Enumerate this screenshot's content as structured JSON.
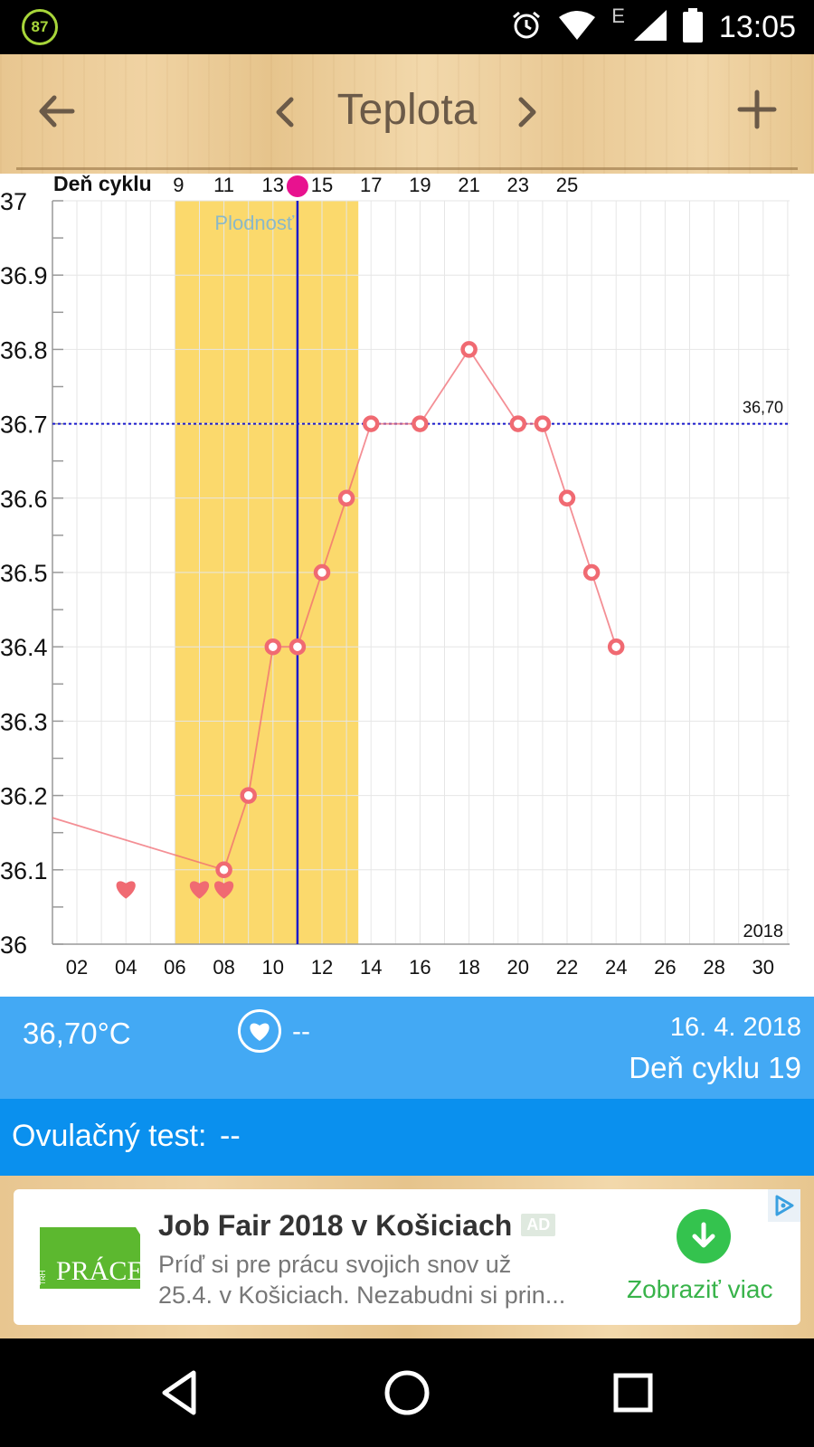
{
  "status_bar": {
    "battery_badge": "87",
    "network_letter": "E",
    "time": "13:05",
    "icons": [
      "alarm-icon",
      "wifi-icon",
      "signal-icon",
      "battery-icon"
    ]
  },
  "toolbar": {
    "title": "Teplota",
    "icons": [
      "back-arrow-icon",
      "chevron-left-icon",
      "chevron-right-icon",
      "plus-icon"
    ]
  },
  "chart_data": {
    "type": "line",
    "cycle_axis_label": "Deň cyklu",
    "cycle_ticks": [
      "9",
      "11",
      "13",
      "15",
      "17",
      "19",
      "21",
      "23",
      "25"
    ],
    "day_ticks": [
      "02",
      "04",
      "06",
      "08",
      "10",
      "12",
      "14",
      "16",
      "18",
      "20",
      "22",
      "24",
      "26",
      "28",
      "30"
    ],
    "y_ticks": [
      "37",
      "36.9",
      "36.8",
      "36.7",
      "36.6",
      "36.5",
      "36.4",
      "36.3",
      "36.2",
      "36.1",
      "36"
    ],
    "xlim": [
      1,
      31
    ],
    "ylim": [
      36.0,
      37.0
    ],
    "year_label": "2018",
    "fertile_window": {
      "label": "Plodnosť",
      "start_day": 6,
      "end_day": 13
    },
    "ovulation_day": 11,
    "reference_line": {
      "value": 36.7,
      "label": "36,70"
    },
    "series": [
      {
        "x": [
          8,
          9,
          10,
          11,
          12,
          13,
          14,
          16,
          18,
          20,
          21,
          22,
          23,
          24
        ],
        "y": [
          36.1,
          36.2,
          36.4,
          36.4,
          36.5,
          36.6,
          36.7,
          36.7,
          36.8,
          36.7,
          36.7,
          36.6,
          36.5,
          36.4
        ]
      }
    ],
    "heart_days": [
      4,
      7,
      8
    ],
    "colors": {
      "series": "#f06a72",
      "fertile": "#fbd96c",
      "ovulation": "#1a1acc",
      "marker_fill": "#ffffff",
      "heart": "#f06a72",
      "pink_dot": "#e8128f"
    }
  },
  "info": {
    "temperature": "36,70°C",
    "heart_value": "--",
    "date": "16. 4. 2018",
    "cycle_day": "Deň cyklu 19"
  },
  "ovulation_test": {
    "label": "Ovulačný test:",
    "value": "--"
  },
  "ad": {
    "title": "Job Fair 2018 v Košiciach",
    "badge": "AD",
    "line1": "Príď si pre prácu svojich snov už",
    "line2": "25.4. v Košiciach. Nezabudni si prin...",
    "cta": "Zobraziť viac",
    "logo_text": "PRÁCE",
    "logo_small": "TRH"
  },
  "colors": {
    "info_bg": "#43a9f4",
    "ovul_bg": "#0a90ee",
    "cta_green": "#34c34e"
  }
}
